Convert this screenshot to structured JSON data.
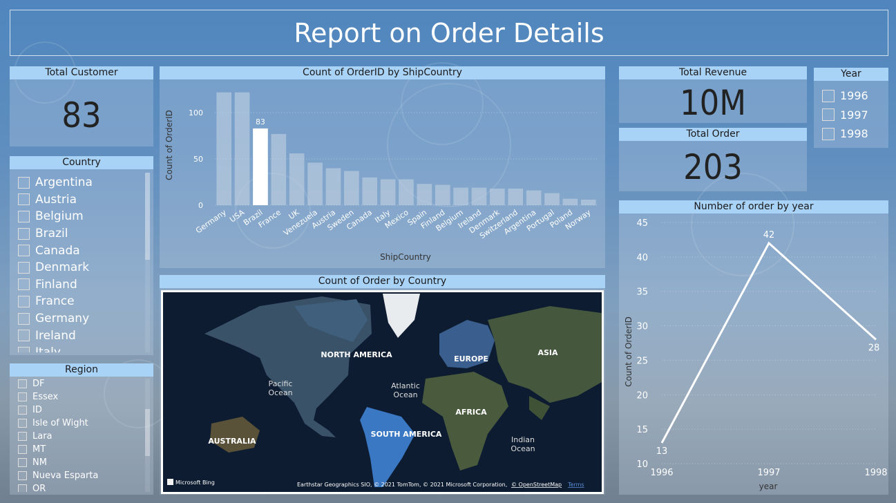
{
  "header": {
    "title": "Report on Order Details"
  },
  "total_customer": {
    "title": "Total Customer",
    "value": "83"
  },
  "country_filter": {
    "title": "Country",
    "items": [
      "Argentina",
      "Austria",
      "Belgium",
      "Brazil",
      "Canada",
      "Denmark",
      "Finland",
      "France",
      "Germany",
      "Ireland",
      "Italy"
    ]
  },
  "region_filter": {
    "title": "Region",
    "items": [
      "DF",
      "Essex",
      "ID",
      "Isle of Wight",
      "Lara",
      "MT",
      "NM",
      "Nueva Esparta",
      "OR"
    ]
  },
  "total_revenue": {
    "title": "Total Revenue",
    "value": "10M"
  },
  "total_order": {
    "title": "Total Order",
    "value": "203"
  },
  "year_filter": {
    "title": "Year",
    "items": [
      "1996",
      "1997",
      "1998"
    ]
  },
  "bar_chart": {
    "title": "Count of OrderID by ShipCountry"
  },
  "line_chart": {
    "title": "Number of order by year"
  },
  "map": {
    "title": "Count of Order by Country",
    "labels": {
      "north_america": "NORTH AMERICA",
      "south_america": "SOUTH AMERICA",
      "europe": "EUROPE",
      "asia": "ASIA",
      "africa": "AFRICA",
      "australia": "AUSTRALIA",
      "pacific": "Pacific\nOcean",
      "atlantic": "Atlantic\nOcean",
      "indian": "Indian\nOcean"
    },
    "logo": "Microsoft Bing",
    "attribution": "Earthstar Geographics SIO, © 2021 TomTom, © 2021 Microsoft Corporation,",
    "osm": "© OpenStreetMap",
    "terms": "Terms"
  },
  "chart_data": [
    {
      "type": "bar",
      "title": "Count of OrderID by ShipCountry",
      "xlabel": "ShipCountry",
      "ylabel": "Count of OrderID",
      "categories": [
        "Germany",
        "USA",
        "Brazil",
        "France",
        "UK",
        "Venezuela",
        "Austria",
        "Sweden",
        "Canada",
        "Italy",
        "Mexico",
        "Spain",
        "Finland",
        "Belgium",
        "Ireland",
        "Denmark",
        "Switzerland",
        "Argentina",
        "Portugal",
        "Poland",
        "Norway"
      ],
      "values": [
        122,
        122,
        83,
        77,
        56,
        46,
        40,
        37,
        30,
        28,
        28,
        23,
        22,
        19,
        19,
        18,
        18,
        16,
        13,
        7,
        6
      ],
      "highlighted": "Brazil",
      "data_labels": {
        "Brazil": "83"
      },
      "yticks": [
        0,
        50,
        100
      ],
      "ylim": [
        0,
        130
      ],
      "grid": true,
      "colors": {
        "bar": "#c9d6e3",
        "highlight": "#ffffff"
      }
    },
    {
      "type": "line",
      "title": "Number of order by year",
      "xlabel": "year",
      "ylabel": "Count of OrderID",
      "x": [
        "1996",
        "1997",
        "1998"
      ],
      "values": [
        13,
        42,
        28
      ],
      "yticks": [
        10,
        15,
        20,
        25,
        30,
        35,
        40,
        45
      ],
      "ylim": [
        10,
        45
      ],
      "grid": true,
      "colors": {
        "line": "#ffffff"
      }
    }
  ]
}
